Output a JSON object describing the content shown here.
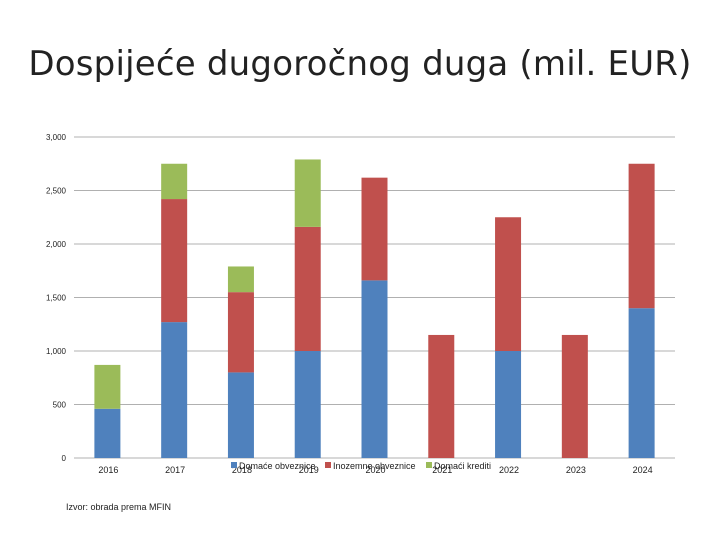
{
  "title": "Dospijeće dugoročnog duga (mil. EUR)",
  "source": "Izvor: obrada prema MFIN",
  "chart_data": {
    "type": "bar",
    "stacked": true,
    "categories": [
      "2016",
      "2017",
      "2018",
      "2019",
      "2020",
      "2021",
      "2022",
      "2023",
      "2024"
    ],
    "series": [
      {
        "name": "Domaće obveznice",
        "color": "#4F81BD",
        "values": [
          460,
          1270,
          800,
          1000,
          1660,
          0,
          1000,
          0,
          1400
        ]
      },
      {
        "name": "Inozemne obveznice",
        "color": "#C0504D",
        "values": [
          0,
          1150,
          750,
          1160,
          960,
          1150,
          1250,
          1150,
          1350
        ]
      },
      {
        "name": "Domaći krediti",
        "color": "#9BBB59",
        "values": [
          410,
          330,
          240,
          630,
          0,
          0,
          0,
          0,
          0
        ]
      }
    ],
    "y_ticks": [
      "0",
      "500",
      "1,000",
      "1,500",
      "2,000",
      "2,500",
      "3,000"
    ],
    "ylim": [
      0,
      3000
    ],
    "grid": true,
    "legend_position": "bottom"
  }
}
